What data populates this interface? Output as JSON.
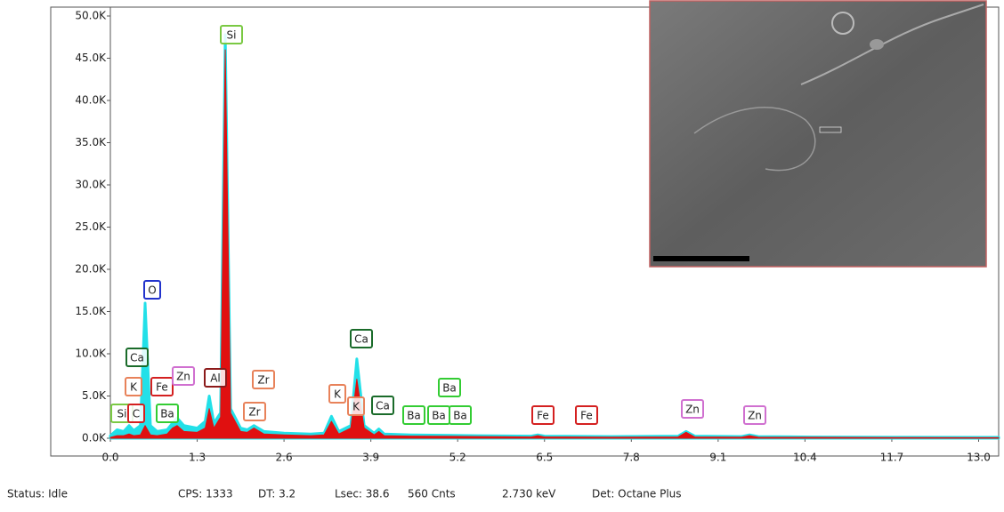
{
  "chart_data": {
    "type": "spectrum",
    "x": [
      0.0,
      0.1,
      0.2,
      0.28,
      0.35,
      0.45,
      0.52,
      0.6,
      0.7,
      0.85,
      0.93,
      1.0,
      1.1,
      1.3,
      1.42,
      1.48,
      1.55,
      1.65,
      1.72,
      1.8,
      1.95,
      2.05,
      2.15,
      2.3,
      2.6,
      3.0,
      3.2,
      3.31,
      3.42,
      3.6,
      3.69,
      3.8,
      3.95,
      4.02,
      4.1,
      4.5,
      5.5,
      6.3,
      6.4,
      6.5,
      7.5,
      8.5,
      8.62,
      8.75,
      9.45,
      9.57,
      9.7,
      10.5,
      11.7,
      13.0,
      13.3
    ],
    "series": [
      {
        "color": "#22e0e8",
        "values": [
          300,
          1000,
          800,
          1500,
          900,
          1500,
          16000,
          1500,
          800,
          1000,
          1800,
          2400,
          1500,
          1200,
          2000,
          5000,
          1800,
          3000,
          47800,
          3500,
          1200,
          1000,
          1500,
          800,
          600,
          500,
          600,
          2600,
          800,
          1500,
          9400,
          1500,
          600,
          1100,
          500,
          400,
          300,
          250,
          400,
          250,
          200,
          250,
          800,
          250,
          200,
          400,
          200,
          150,
          120,
          100,
          100
        ]
      },
      {
        "color": "#e01010",
        "values": [
          100,
          300,
          300,
          500,
          300,
          400,
          1500,
          400,
          300,
          500,
          1200,
          1500,
          800,
          700,
          1200,
          3500,
          1200,
          2500,
          46000,
          3000,
          800,
          700,
          1200,
          500,
          400,
          300,
          400,
          2000,
          500,
          1200,
          7000,
          1200,
          400,
          800,
          300,
          250,
          200,
          150,
          300,
          150,
          120,
          150,
          700,
          150,
          120,
          300,
          120,
          100,
          80,
          60,
          60
        ]
      }
    ],
    "xlim": [
      0,
      13.3
    ],
    "ylim": [
      0,
      50000
    ],
    "xticks": [
      {
        "value": 0,
        "label": "0.0"
      },
      1.3,
      2.6,
      3.9,
      5.2,
      6.5,
      7.8,
      9.1,
      10.4,
      11.7,
      {
        "value": 13,
        "label": "13.0"
      }
    ],
    "yticks": [
      {
        "value": 0,
        "label": "0.0K"
      },
      {
        "value": 5000,
        "label": "5.0K"
      },
      {
        "value": 10000,
        "label": "10.0K"
      },
      {
        "value": 15000,
        "label": "15.0K"
      },
      {
        "value": 20000,
        "label": "20.0K"
      },
      {
        "value": 25000,
        "label": "25.0K"
      },
      {
        "value": 30000,
        "label": "30.0K"
      },
      {
        "value": 35000,
        "label": "35.0K"
      },
      {
        "value": 40000,
        "label": "40.0K"
      },
      {
        "value": 45000,
        "label": "45.0K"
      },
      {
        "value": 50000,
        "label": "50.0K"
      }
    ],
    "annotations": [
      {
        "text": "Si",
        "color": "#7ac943"
      },
      {
        "text": "O",
        "color": "#2233cc"
      },
      {
        "text": "Ca",
        "color": "#1a6b2a"
      },
      {
        "text": "K",
        "color": "#e8825a"
      },
      {
        "text": "Fe",
        "color": "#d42020"
      },
      {
        "text": "Zn",
        "color": "#d070d0"
      },
      {
        "text": "Al",
        "color": "#8b1a1a"
      },
      {
        "text": "Zr",
        "color": "#e8825a"
      },
      {
        "text": "Zr",
        "color": "#e8825a"
      },
      {
        "text": "Si",
        "color": "#7ac943"
      },
      {
        "text": "C",
        "color": "#d42020"
      },
      {
        "text": "Ba",
        "color": "#33cc33"
      },
      {
        "text": "K",
        "color": "#e8825a"
      },
      {
        "text": "K",
        "color": "#e8825a"
      },
      {
        "text": "Ca",
        "color": "#1a6b2a"
      },
      {
        "text": "Ca",
        "color": "#1a6b2a"
      },
      {
        "text": "Ba",
        "color": "#33cc33"
      },
      {
        "text": "Ba",
        "color": "#33cc33"
      },
      {
        "text": "Ba",
        "color": "#33cc33"
      },
      {
        "text": "Ba",
        "color": "#33cc33"
      },
      {
        "text": "Fe",
        "color": "#d42020"
      },
      {
        "text": "Fe",
        "color": "#d42020"
      },
      {
        "text": "Zn",
        "color": "#d070d0"
      },
      {
        "text": "Zn",
        "color": "#d070d0"
      }
    ]
  },
  "status_bar": [
    "Status: Idle",
    "CPS: 1333",
    "DT: 3.2",
    "Lsec: 38.6",
    "560 Cnts",
    "2.730 keV",
    "Det: Octane Plus"
  ]
}
